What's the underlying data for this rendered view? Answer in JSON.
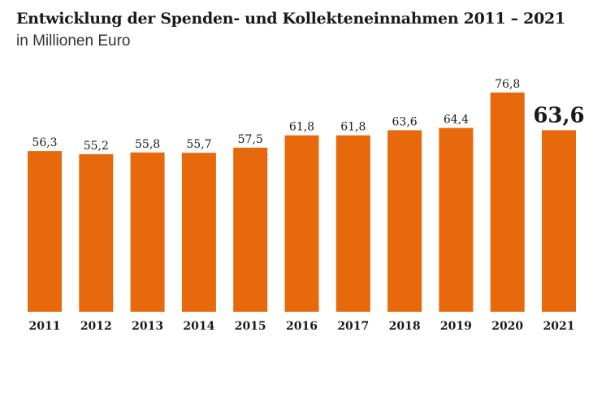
{
  "header": {
    "title": "Entwicklung der Spenden- und Kollekteneinnahmen 2011 – 2021",
    "subtitle": "in Millionen Euro"
  },
  "colors": {
    "bar": "#e8680c",
    "highlight_text": "#e8680c",
    "text": "#1a1a1a"
  },
  "chart_data": {
    "type": "bar",
    "title": "Entwicklung der Spenden- und Kollekteneinnahmen 2011 – 2021",
    "subtitle": "in Millionen Euro",
    "categories": [
      "2011",
      "2012",
      "2013",
      "2014",
      "2015",
      "2016",
      "2017",
      "2018",
      "2019",
      "2020",
      "2021"
    ],
    "values": [
      56.3,
      55.2,
      55.8,
      55.7,
      57.5,
      61.8,
      61.8,
      63.6,
      64.4,
      76.8,
      63.6
    ],
    "labels": [
      "56,3",
      "55,2",
      "55,8",
      "55,7",
      "57,5",
      "61,8",
      "61,8",
      "63,6",
      "64,4",
      "76,8",
      "63,6"
    ],
    "highlight": "2021",
    "xlabel": "",
    "ylabel": "",
    "ylim": [
      0,
      76.8
    ],
    "grid": false,
    "legend": "none"
  }
}
